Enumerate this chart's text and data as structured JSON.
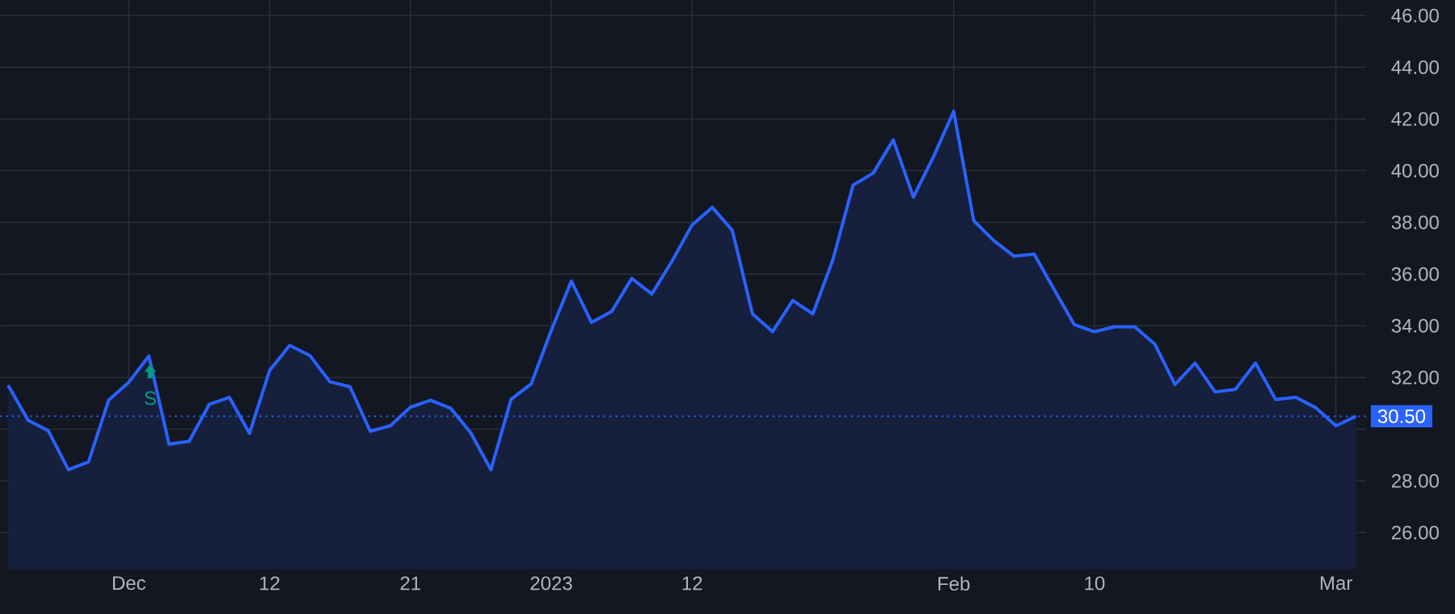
{
  "chart_data": {
    "type": "area",
    "categories": [
      null,
      null,
      null,
      null,
      null,
      null,
      "Dec",
      null,
      null,
      null,
      null,
      null,
      null,
      "12",
      null,
      null,
      null,
      null,
      null,
      null,
      "21",
      null,
      null,
      null,
      null,
      null,
      null,
      "2023",
      null,
      null,
      null,
      null,
      null,
      null,
      "12",
      null,
      null,
      null,
      null,
      null,
      null,
      null,
      null,
      null,
      null,
      null,
      null,
      "Feb",
      null,
      null,
      null,
      null,
      null,
      null,
      "10",
      null,
      null,
      null,
      null,
      null,
      null,
      null,
      null,
      null,
      null,
      null,
      "Mar",
      null
    ],
    "series": [
      {
        "color": "#2962ff",
        "values": [
          31.7,
          30.34,
          29.94,
          28.43,
          28.74,
          31.12,
          31.81,
          32.83,
          29.42,
          29.53,
          30.96,
          31.23,
          29.84,
          32.27,
          33.24,
          32.85,
          31.83,
          31.64,
          29.92,
          30.13,
          30.85,
          31.12,
          30.81,
          29.86,
          28.43,
          31.15,
          31.75,
          33.82,
          35.73,
          34.13,
          34.55,
          35.83,
          35.23,
          36.5,
          37.9,
          38.58,
          37.69,
          34.46,
          33.77,
          34.98,
          34.46,
          36.56,
          39.44,
          39.9,
          41.19,
          38.98,
          40.54,
          42.29,
          38.06,
          37.29,
          36.69,
          36.77,
          35.4,
          34.04,
          33.77,
          33.96,
          33.96,
          33.29,
          31.73,
          32.56,
          31.44,
          31.54,
          32.56,
          31.15,
          31.23,
          30.83,
          30.13,
          30.5
        ]
      }
    ],
    "ylim": [
      24.6,
      46.6
    ],
    "yticks": [
      {
        "value": 26,
        "label": "26.00"
      },
      {
        "value": 28,
        "label": "28.00"
      },
      {
        "value": 30,
        "label": null
      },
      {
        "value": 32,
        "label": "32.00"
      },
      {
        "value": 34,
        "label": "34.00"
      },
      {
        "value": 36,
        "label": "36.00"
      },
      {
        "value": 38,
        "label": "38.00"
      },
      {
        "value": 40,
        "label": "40.00"
      },
      {
        "value": 42,
        "label": "42.00"
      },
      {
        "value": 44,
        "label": "44.00"
      },
      {
        "value": 46,
        "label": "46.00"
      }
    ],
    "grid": true,
    "ref_lines": [
      {
        "axis": "y",
        "value": 30.5,
        "label": "30.50",
        "color": "#2962ff",
        "line_style": "dotted"
      }
    ],
    "annotations": [
      "S"
    ]
  }
}
